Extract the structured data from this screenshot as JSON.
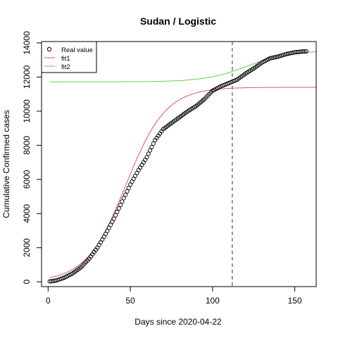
{
  "chart_data": {
    "type": "scatter",
    "title": "Sudan / Logistic",
    "xlabel": "Days since 2020-04-22",
    "ylabel": "Cumulative Confirmed cases",
    "xlim": [
      -4,
      163
    ],
    "ylim": [
      -280,
      14080
    ],
    "xticks": [
      0,
      50,
      100,
      150
    ],
    "yticks": [
      0,
      2000,
      4000,
      6000,
      8000,
      10000,
      12000,
      14000
    ],
    "grid": false,
    "legend_position": "top-left",
    "vline_x": 112,
    "legend": [
      {
        "name": "Real value",
        "marker": "circle",
        "color": "#000000"
      },
      {
        "name": "fit1",
        "marker": "line",
        "color": "#DF536B"
      },
      {
        "name": "fit2",
        "marker": "line",
        "color": "#61D04F"
      }
    ],
    "real_value_knots": {
      "x": [
        1,
        5,
        10,
        15,
        20,
        25,
        30,
        35,
        40,
        45,
        50,
        55,
        60,
        65,
        70,
        75,
        80,
        85,
        90,
        95,
        100,
        105,
        110,
        115,
        120,
        125,
        130,
        135,
        140,
        145,
        150,
        155,
        157
      ],
      "y": [
        20,
        80,
        250,
        500,
        850,
        1350,
        2000,
        2800,
        3700,
        4700,
        5700,
        6550,
        7300,
        8300,
        8950,
        9300,
        9650,
        10000,
        10300,
        10700,
        11200,
        11450,
        11650,
        11850,
        12200,
        12500,
        12850,
        13100,
        13200,
        13350,
        13450,
        13500,
        13500
      ]
    },
    "series": [
      {
        "name": "fit1",
        "color": "#DF536B",
        "model": "logistic",
        "params": {
          "K": 11400,
          "r": 0.0825,
          "x0": 47.4
        },
        "x_range": [
          1,
          163
        ]
      },
      {
        "name": "fit2",
        "color": "#61D04F",
        "model": "logistic",
        "params": {
          "base": 11720,
          "K": 1830,
          "r": 0.078,
          "x0": 121
        },
        "x_range": [
          1,
          163
        ]
      }
    ]
  }
}
